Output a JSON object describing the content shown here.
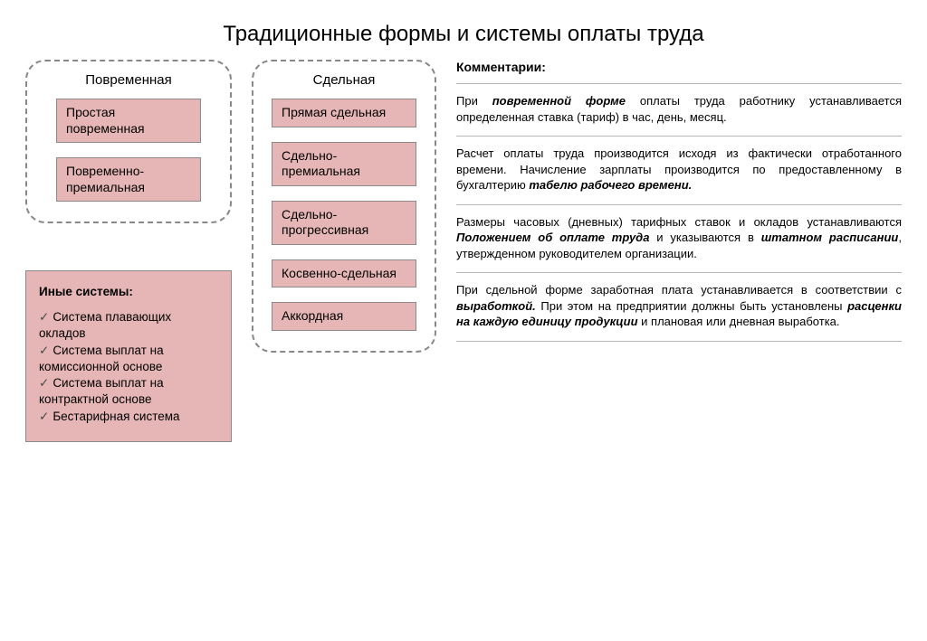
{
  "title": "Традиционные формы и системы оплаты труда",
  "colors": {
    "node_fill": "#e6b6b6",
    "node_border": "#8a8a8a",
    "dashed_border": "#888888",
    "text": "#000000",
    "rule": "#b6b6b6",
    "background": "#ffffff"
  },
  "left_panel": {
    "title": "Повременная",
    "items": [
      "Простая повременная",
      "Повременно-премиальная"
    ]
  },
  "mid_panel": {
    "title": "Сдельная",
    "items": [
      "Прямая сдельная",
      "Сдельно-премиальная",
      "Сдельно-прогрессивная",
      "Косвенно-сдельная",
      "Аккордная"
    ]
  },
  "other_panel": {
    "title": "Иные системы:",
    "items": [
      "Система плавающих окладов",
      "Система выплат на комиссионной основе",
      "Система выплат на контрактной основе",
      "Бестарифная система"
    ]
  },
  "comments": {
    "title": "Комментарии:",
    "blocks": [
      "При <span class=\"bi\">повременной форме</span> оплаты труда работнику устанавливается определенная ставка (тариф) в час, день, месяц.",
      "Расчет оплаты труда производится исходя из фактически отработанного времени. Начисление зарплаты производится по предоставленному в бухгалтерию <span class=\"bi\">табелю рабочего времени.</span>",
      "Размеры часовых (дневных) тарифных ставок и окладов устанавливаются <span class=\"bi\">Положением об оплате труда</span> и указываются в <span class=\"bi\">штатном расписании</span>, утвержденном руководителем организации.",
      "При сдельной форме заработная плата устанавливается в соответствии с <span class=\"bi\">выработкой.</span> При этом на предприятии должны быть установлены <span class=\"bi\">расценки на каждую единицу продукции</span> и плановая или дневная выработка."
    ]
  }
}
